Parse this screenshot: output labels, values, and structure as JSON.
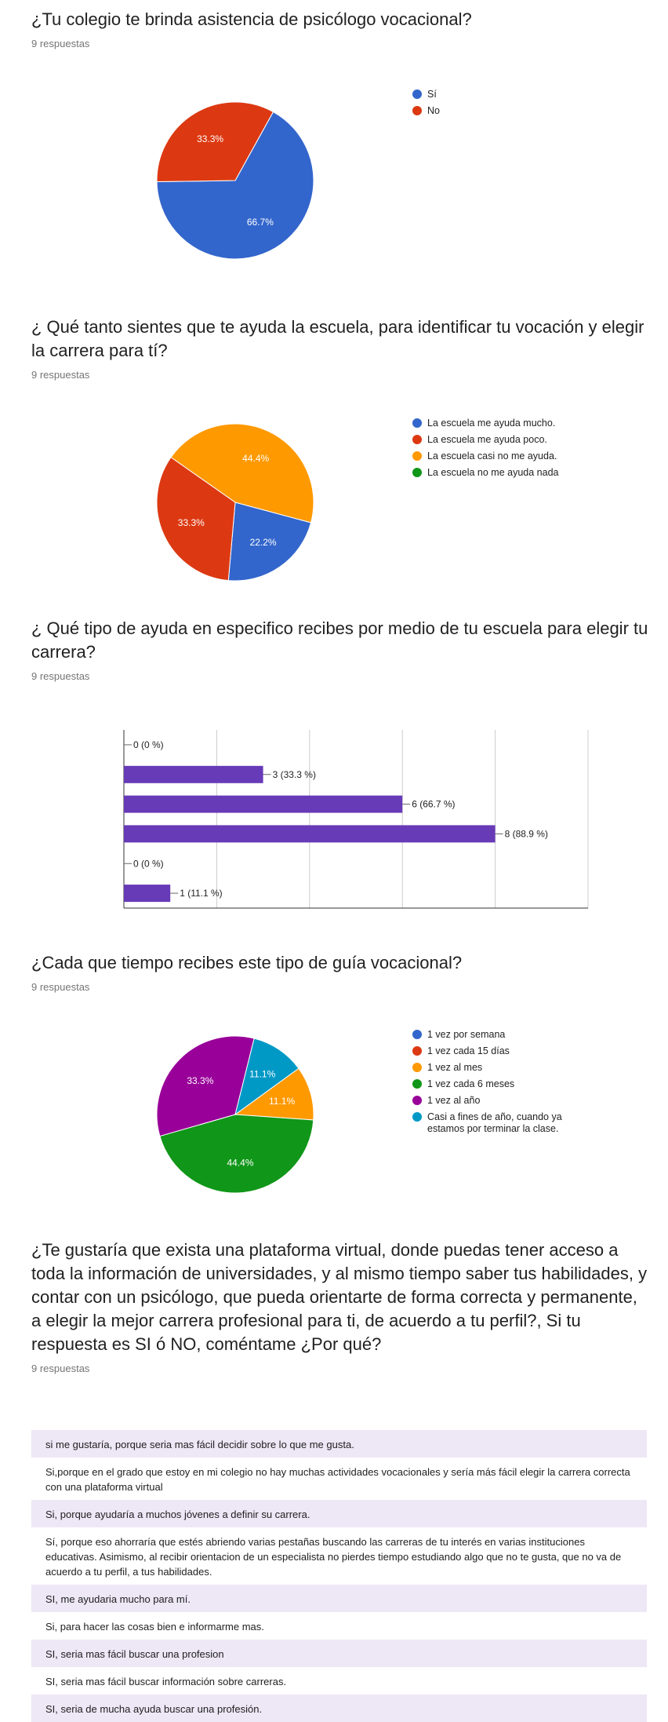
{
  "q1": {
    "title": "¿Tu colegio te brinda asistencia de psicólogo vocacional?",
    "count": "9 respuestas",
    "chart_data": {
      "type": "pie",
      "labels": [
        "Sí",
        "No"
      ],
      "values": [
        66.7,
        33.3
      ],
      "value_labels": [
        "66.7%",
        "33.3%"
      ],
      "colors": [
        "#3366cc",
        "#dc3912"
      ],
      "legend": "right"
    }
  },
  "q2": {
    "title": "¿ Qué tanto sientes que te ayuda la escuela, para identificar tu vocación y elegir la carrera para tí?",
    "count": "9 respuestas",
    "chart_data": {
      "type": "pie",
      "labels": [
        "La escuela me ayuda mucho.",
        "La escuela me ayuda poco.",
        "La escuela casi no me ayuda.",
        "La escuela no me ayuda nada"
      ],
      "values": [
        22.2,
        33.3,
        44.4,
        0
      ],
      "value_labels": [
        "22.2%",
        "33.3%",
        "44.4%",
        ""
      ],
      "colors": [
        "#3366cc",
        "#dc3912",
        "#ff9900",
        "#109618"
      ],
      "legend": "right"
    }
  },
  "q3": {
    "title": "¿ Qué tipo de ayuda en especifico recibes por medio de tu escuela para elegir tu carrera?",
    "count": "9 respuestas",
    "chart_data": {
      "type": "bar",
      "orientation": "horizontal",
      "values": [
        0,
        3,
        6,
        8,
        0,
        1
      ],
      "value_labels": [
        "0 (0 %)",
        "3 (33.3 %)",
        "6 (66.7 %)",
        "8 (88.9 %)",
        "0 (0 %)",
        "1 (11.1 %)"
      ],
      "xlim": [
        0,
        10
      ],
      "xticks": [
        "0",
        "2",
        "4",
        "6",
        "8",
        "10"
      ],
      "color": "#673ab7",
      "grid": true
    }
  },
  "q4": {
    "title": "¿Cada que tiempo recibes este tipo de guía vocacional?",
    "count": "9 respuestas",
    "chart_data": {
      "type": "pie",
      "labels": [
        "1 vez por semana",
        "1 vez cada 15 días",
        "1 vez al mes",
        "1 vez cada 6 meses",
        "1 vez al año",
        "Casi a fines de año, cuando ya estamos por terminar la clase."
      ],
      "values": [
        0,
        0,
        11.1,
        44.4,
        33.3,
        11.1
      ],
      "value_labels": [
        "",
        "",
        "11.1%",
        "44.4%",
        "33.3%",
        "11.1%"
      ],
      "colors": [
        "#3366cc",
        "#dc3912",
        "#ff9900",
        "#109618",
        "#990099",
        "#0099c6"
      ],
      "legend": "right"
    }
  },
  "q5": {
    "title": "¿Te gustaría que exista una plataforma virtual, donde puedas tener acceso a toda la información de universidades, y al mismo tiempo saber tus habilidades, y contar con un psicólogo, que pueda orientarte de forma correcta y permanente, a elegir la mejor carrera profesional para ti, de acuerdo a tu perfil?, Si tu respuesta es SI ó NO, coméntame ¿Por qué?",
    "count": "9 respuestas",
    "responses": [
      "si me gustaría, porque seria mas fácil decidir sobre lo que me gusta.",
      "Si,porque en el grado que estoy en mi colegio no hay muchas actividades vocacionales y sería más fácil elegir la carrera correcta con una plataforma virtual",
      "Si, porque ayudaría a muchos jóvenes a definir su carrera.",
      "Sí, porque eso ahorraría que estés abriendo varias pestañas buscando las carreras de tu interés en varias instituciones educativas. Asimismo, al recibir orientacion de un especialista no pierdes tiempo estudiando algo que no te gusta, que no va de acuerdo a tu perfil, a tus habilidades.",
      "SI, me ayudaria mucho para mí.",
      "Si, para hacer las cosas bien e informarme mas.",
      "SI, seria mas fácil buscar una profesion",
      "SI, seria mas fácil buscar información sobre carreras.",
      "SI, seria de mucha ayuda buscar una profesión."
    ]
  }
}
